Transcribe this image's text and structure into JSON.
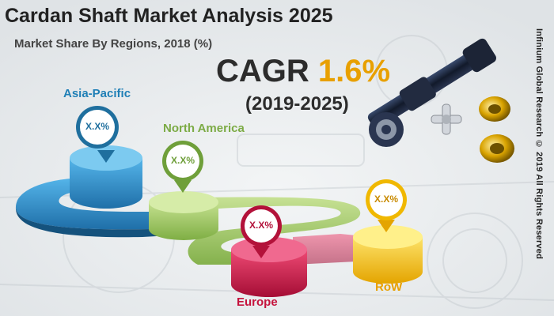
{
  "title": "Cardan Shaft Market Analysis 2025",
  "subtitle": "Market Share By Regions, 2018 (%)",
  "cagr": {
    "label": "CAGR",
    "value": "1.6%",
    "period": "(2019-2025)"
  },
  "regions": [
    {
      "name": "Asia-Pacific",
      "value": "X.X%"
    },
    {
      "name": "North America",
      "value": "X.X%"
    },
    {
      "name": "Europe",
      "value": "X.X%"
    },
    {
      "name": "RoW",
      "value": "X.X%"
    }
  ],
  "copyright": "Infinium Global Research © 2019 All Rights Reserved",
  "colors": {
    "asia_pacific": "#2e9ad6",
    "north_america": "#9cc85c",
    "europe": "#d4174a",
    "row": "#f5c518",
    "accent": "#e8a000"
  }
}
